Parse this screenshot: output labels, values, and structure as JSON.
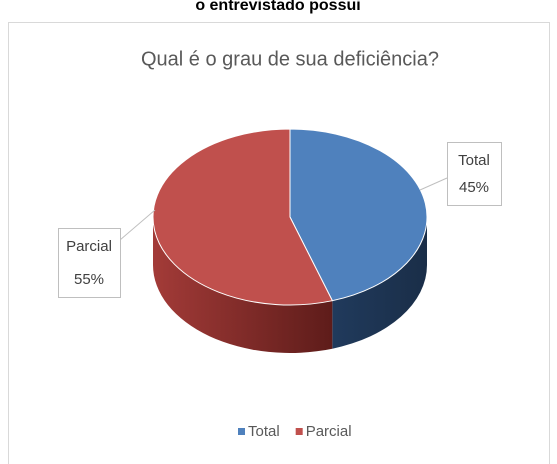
{
  "header": "o entrevistado possui",
  "chart_data": {
    "type": "pie3d",
    "title": "Qual é o grau de sua deficiência?",
    "categories": [
      "Total",
      "Parcial"
    ],
    "values": [
      45,
      55
    ],
    "value_labels": [
      "45%",
      "55%"
    ],
    "colors": [
      "#4f81bd",
      "#c0504d"
    ],
    "legend": "bottom"
  }
}
